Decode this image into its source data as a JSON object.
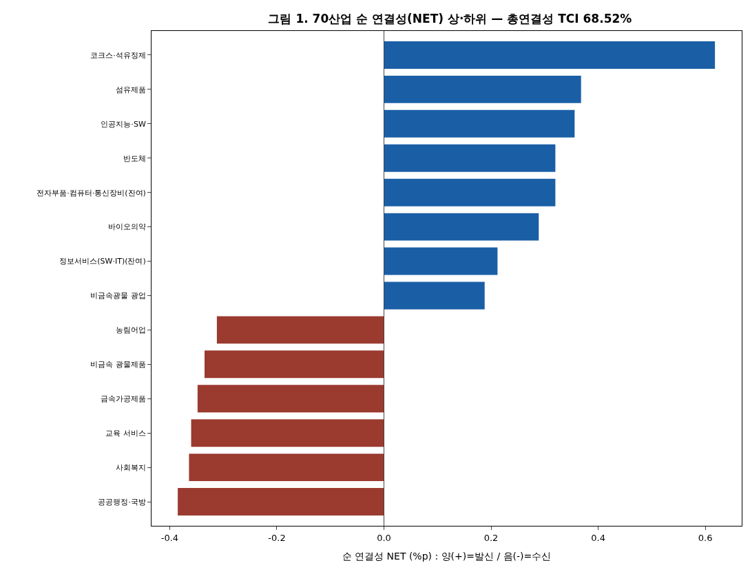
{
  "chart_data": {
    "type": "bar",
    "orientation": "horizontal",
    "title": "그림 1. 70산업 순 연결성(NET) 상·하위 — 총연결성 TCI 68.52%",
    "xlabel": "순 연결성 NET (%p) : 양(+)=발신 / 음(-)=수신",
    "categories": [
      "코크스·석유정제",
      "섬유제품",
      "인공지능·SW",
      "반도체",
      "전자부품·컴퓨터·통신장비(잔여)",
      "바이오의약",
      "정보서비스(SW·IT)(잔여)",
      "비금속광물 광업",
      "농림어업",
      "비금속 광물제품",
      "금속가공제품",
      "교육 서비스",
      "사회복지",
      "공공행정·국방"
    ],
    "values": [
      0.618,
      0.368,
      0.356,
      0.32,
      0.32,
      0.289,
      0.212,
      0.188,
      -0.312,
      -0.335,
      -0.348,
      -0.36,
      -0.364,
      -0.385
    ],
    "colors": [
      "#1a5fa6",
      "#1a5fa6",
      "#1a5fa6",
      "#1a5fa6",
      "#1a5fa6",
      "#1a5fa6",
      "#1a5fa6",
      "#1a5fa6",
      "#9b3a2f",
      "#9b3a2f",
      "#9b3a2f",
      "#9b3a2f",
      "#9b3a2f",
      "#9b3a2f"
    ],
    "xlim": [
      -0.434,
      0.668
    ],
    "xticks": [
      -0.4,
      -0.2,
      {
        "value": 0,
        "label": "0.0"
      },
      0.2,
      0.4,
      0.6
    ],
    "ref_lines": [
      {
        "axis": "x",
        "value": 0,
        "label": null,
        "color": "#444444"
      }
    ]
  }
}
